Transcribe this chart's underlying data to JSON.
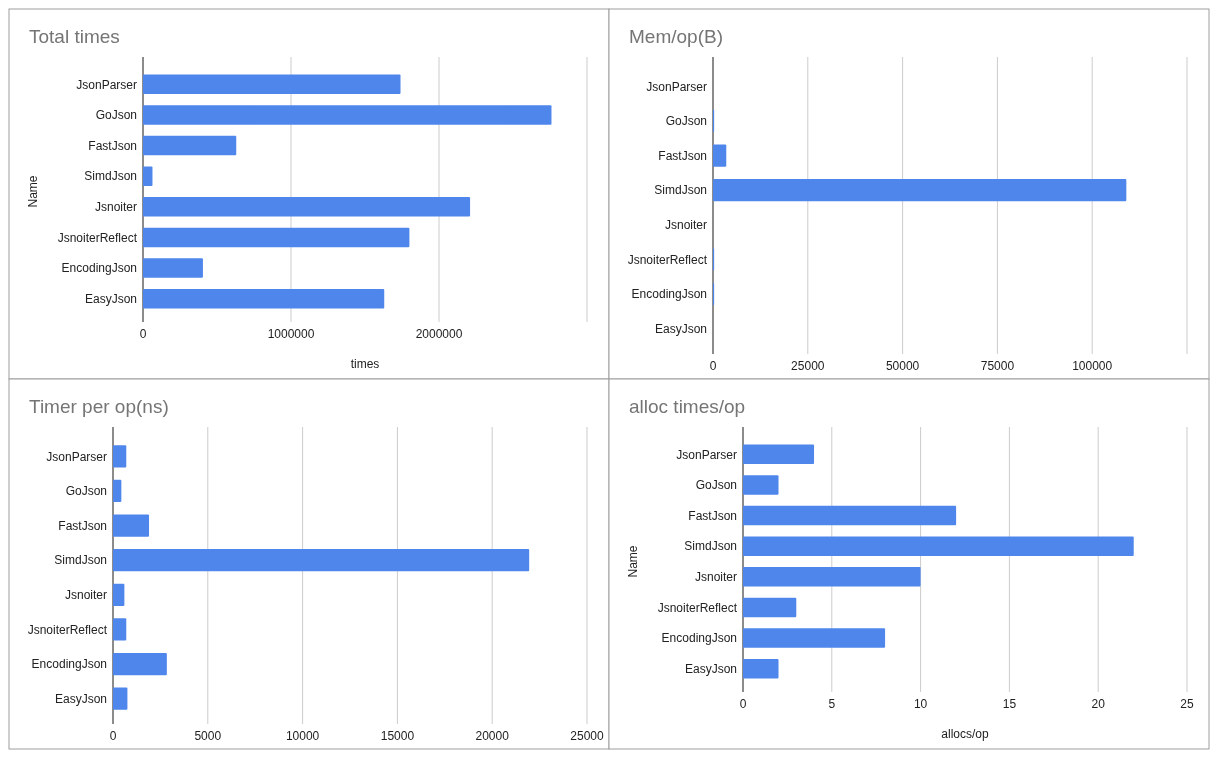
{
  "chart_data": [
    {
      "type": "bar",
      "orientation": "horizontal",
      "title": "Total times",
      "xlabel": "times",
      "ylabel": "Name",
      "categories": [
        "JsonParser",
        "GoJson",
        "FastJson",
        "SimdJson",
        "Jsnoiter",
        "JsnoiterReflect",
        "EncodingJson",
        "EasyJson"
      ],
      "values": [
        1740000,
        2760000,
        630000,
        64000,
        2210000,
        1800000,
        405000,
        1630000
      ],
      "color": "#4f86ec",
      "xlim": [
        0,
        3000000
      ],
      "xticks": [
        0,
        1000000,
        2000000,
        {
          "value": 3000000,
          "label": null
        }
      ],
      "grid": "x"
    },
    {
      "type": "bar",
      "orientation": "horizontal",
      "title": "Mem/op(B)",
      "categories": [
        "JsonParser",
        "GoJson",
        "FastJson",
        "SimdJson",
        "Jsnoiter",
        "JsnoiterReflect",
        "EncodingJson",
        "EasyJson"
      ],
      "values": [
        0,
        300,
        3500,
        109000,
        0,
        300,
        300,
        0
      ],
      "color": "#4f86ec",
      "xlim": [
        0,
        125000
      ],
      "xticks": [
        0,
        25000,
        50000,
        75000,
        100000,
        {
          "value": 125000,
          "label": null
        }
      ],
      "grid": "x"
    },
    {
      "type": "bar",
      "orientation": "horizontal",
      "title": "Timer per op(ns)",
      "categories": [
        "JsonParser",
        "GoJson",
        "FastJson",
        "SimdJson",
        "Jsnoiter",
        "JsnoiterReflect",
        "EncodingJson",
        "EasyJson"
      ],
      "values": [
        700,
        440,
        1900,
        21950,
        600,
        700,
        2840,
        760
      ],
      "color": "#4f86ec",
      "xlim": [
        0,
        25000
      ],
      "xticks": [
        0,
        5000,
        10000,
        15000,
        20000,
        25000
      ],
      "grid": "x"
    },
    {
      "type": "bar",
      "orientation": "horizontal",
      "title": "alloc times/op",
      "xlabel": "allocs/op",
      "ylabel": "Name",
      "categories": [
        "JsonParser",
        "GoJson",
        "FastJson",
        "SimdJson",
        "Jsnoiter",
        "JsnoiterReflect",
        "EncodingJson",
        "EasyJson"
      ],
      "values": [
        4,
        2,
        12,
        22,
        10,
        3,
        8,
        2
      ],
      "color": "#4f86ec",
      "xlim": [
        0,
        25
      ],
      "xticks": [
        0,
        5,
        10,
        15,
        20,
        25
      ],
      "grid": "x"
    }
  ]
}
